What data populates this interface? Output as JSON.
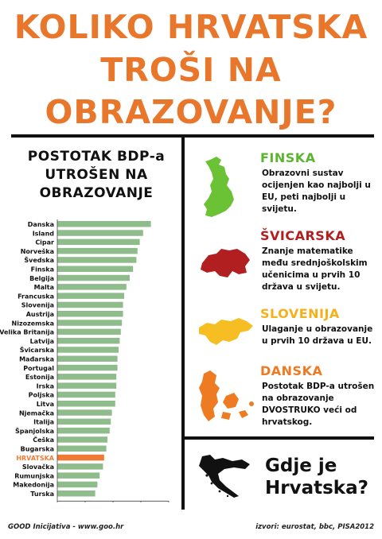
{
  "title": {
    "line1": "KOLIKO HRVATSKA",
    "line2": "TROŠI NA",
    "line3": "OBRAZOVANJE?"
  },
  "chart_data": {
    "type": "bar",
    "orientation": "horizontal",
    "title": [
      "POSTOTAK BDP-a",
      "UTROŠEN NA",
      "OBRAZOVANJE"
    ],
    "categories": [
      "Danska",
      "Island",
      "Cipar",
      "Norveška",
      "Švedska",
      "Finska",
      "Belgija",
      "Malta",
      "Francuska",
      "Slovenija",
      "Austrija",
      "Nizozemska",
      "Velika Britanija",
      "Latvija",
      "Švicarska",
      "Mađarska",
      "Portugal",
      "Estonija",
      "Irska",
      "Poljska",
      "Litva",
      "Njemačka",
      "Italija",
      "Španjolska",
      "Češka",
      "Bugarska",
      "HRVATSKA",
      "Slovačka",
      "Rumunjska",
      "Makedonija",
      "Turska"
    ],
    "values": [
      8.4,
      7.7,
      7.4,
      7.2,
      7.1,
      6.8,
      6.5,
      6.2,
      6.0,
      5.9,
      5.9,
      5.8,
      5.7,
      5.6,
      5.5,
      5.4,
      5.4,
      5.3,
      5.3,
      5.2,
      5.2,
      4.9,
      4.8,
      4.7,
      4.5,
      4.4,
      4.2,
      4.1,
      3.8,
      3.6,
      3.4
    ],
    "highlight": "HRVATSKA",
    "highlight_color": "#f07a33",
    "bar_color": "#8fbc8b",
    "xlim": [
      0,
      10
    ],
    "xticks": [
      "0",
      "2.5",
      "5",
      "7.5",
      "10"
    ],
    "grid": false
  },
  "countries": [
    {
      "name": "FINSKA",
      "color": "#5cb531",
      "map_color": "#6cc235",
      "map_icon": "finland-map-icon",
      "desc": "Obrazovni sustav ocijenjen kao najbolji u EU, peti najbolji u svijetu."
    },
    {
      "name": "ŠVICARSKA",
      "color": "#b11f20",
      "map_color": "#b11f20",
      "map_icon": "switzerland-map-icon",
      "desc": "Znanje matematike među srednjoškolskim učenicima u prvih 10 država u svijetu."
    },
    {
      "name": "SLOVENIJA",
      "color": "#f5b01a",
      "map_color": "#f7be24",
      "map_icon": "slovenia-map-icon",
      "desc": "Ulaganje u obrazovanje u prvih 10 država u EU."
    },
    {
      "name": "DANSKA",
      "color": "#ee7b22",
      "map_color": "#ee7b22",
      "map_icon": "denmark-map-icon",
      "desc": "Postotak BDP-a utrošen na obrazovanje DVOSTRUKO veći od hrvatskog."
    }
  ],
  "question": {
    "line1": "Gdje je",
    "line2": "Hrvatska?",
    "map_icon": "croatia-map-icon"
  },
  "footer": {
    "left": "GOOD Inicijativa - www.goo.hr",
    "right": "izvori: eurostat, bbc, PISA2012"
  }
}
